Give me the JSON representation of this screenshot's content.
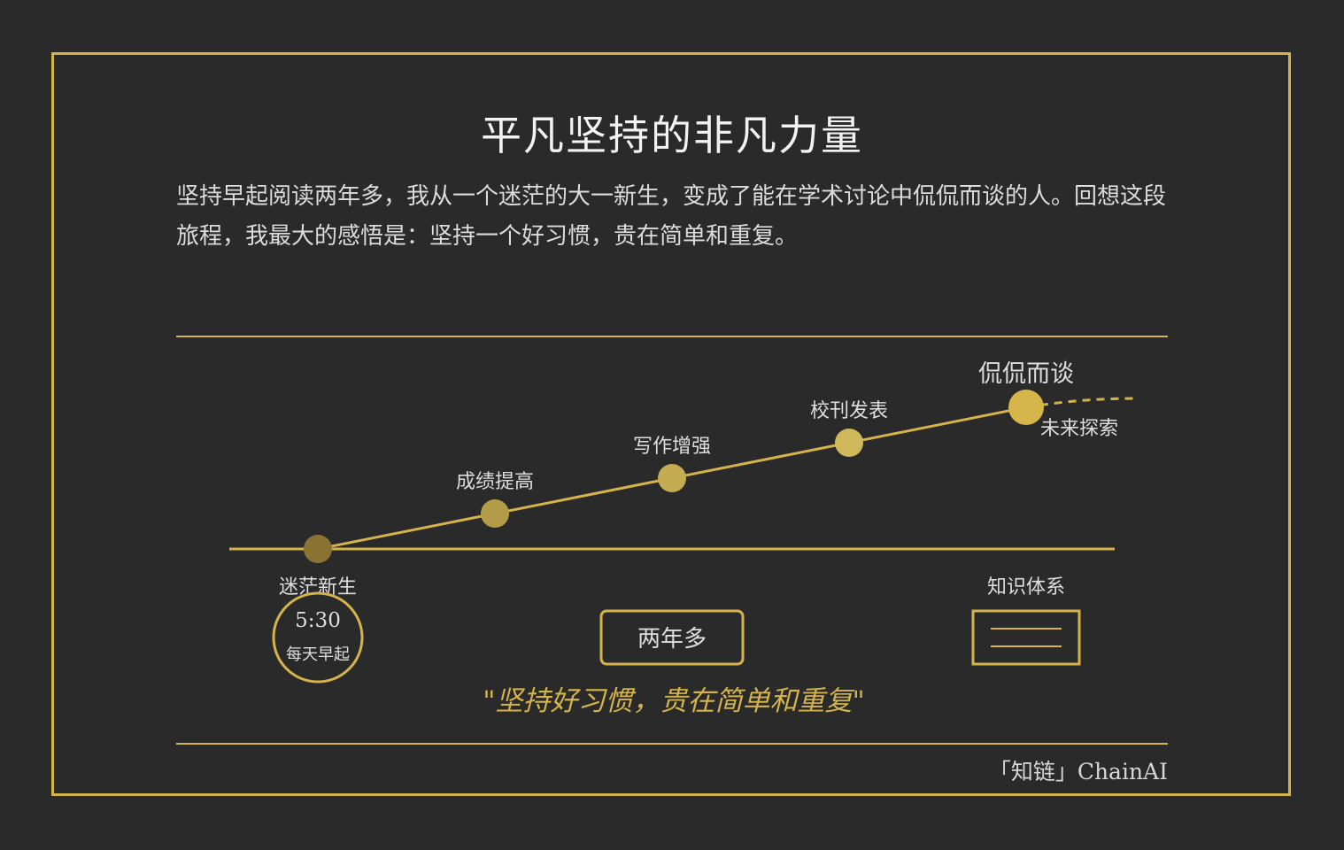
{
  "title": "平凡坚持的非凡力量",
  "intro": "坚持早起阅读两年多，我从一个迷茫的大一新生，变成了能在学术讨论中侃侃而谈的人。回想这段旅程，我最大的感悟是：坚持一个好习惯，贵在简单和重复。",
  "timeline": {
    "milestones": [
      {
        "label": "迷茫新生",
        "color": "#8a7232"
      },
      {
        "label": "成绩提高",
        "color": "#b39c48"
      },
      {
        "label": "写作增强",
        "color": "#c4ac52"
      },
      {
        "label": "校刊发表",
        "color": "#d0b95a"
      },
      {
        "label": "侃侃而谈",
        "color": "#d6b54a"
      }
    ],
    "future_label": "未来探索",
    "alarm": {
      "time": "5:30",
      "caption": "每天早起"
    },
    "duration": "两年多",
    "knowledge": "知识体系"
  },
  "quote": "\"坚持好习惯，贵在简单和重复\"",
  "brand": "「知链」ChainAI",
  "colors": {
    "accent": "#d4b44a",
    "background": "#2a2a2a",
    "text": "#f2f2f2"
  }
}
